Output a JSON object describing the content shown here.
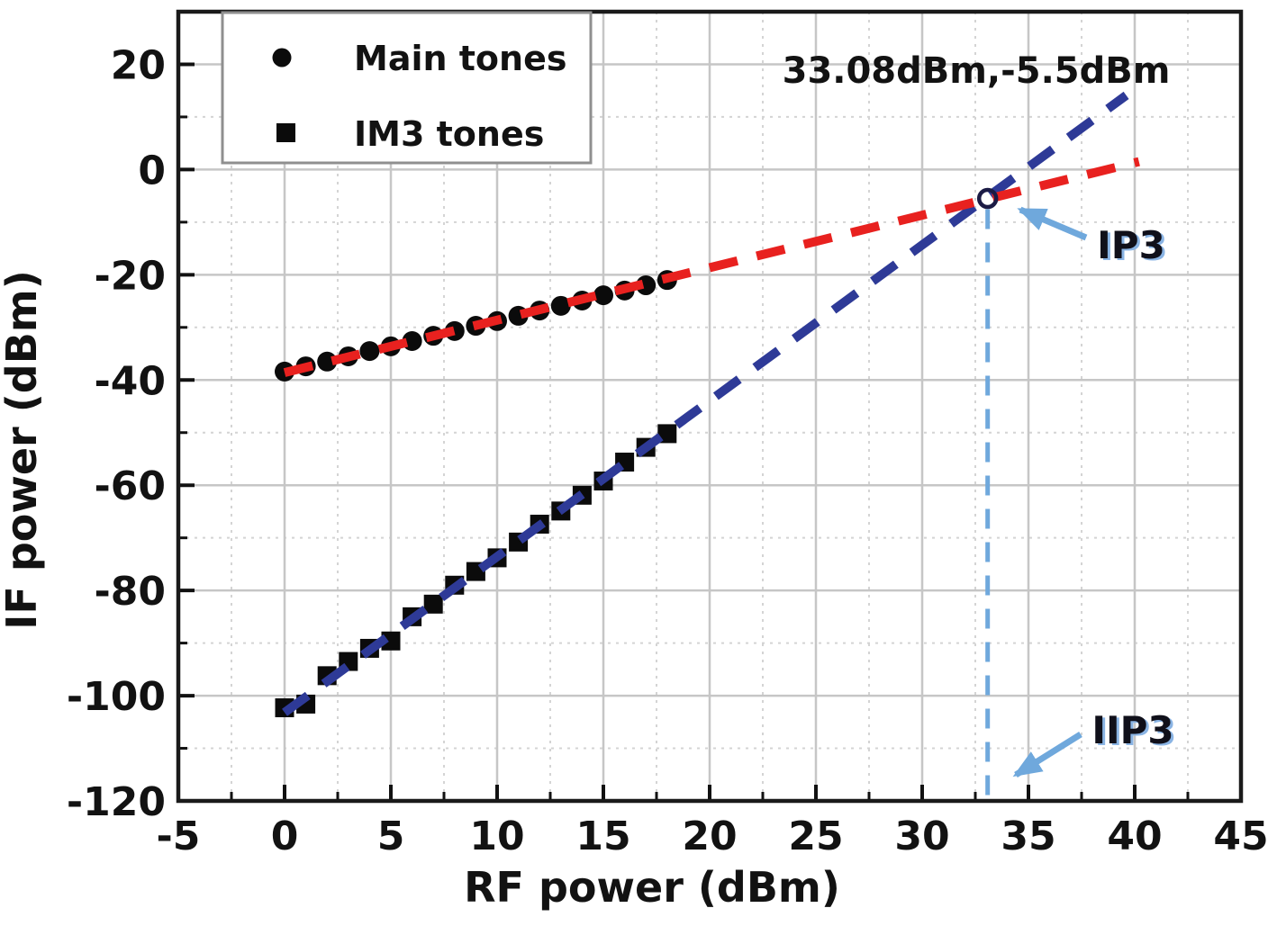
{
  "chart_data": {
    "type": "scatter",
    "xlabel": "RF power (dBm)",
    "ylabel": "IF power (dBm)",
    "xlim": [
      -5,
      45
    ],
    "ylim": [
      -120,
      30
    ],
    "grid": true,
    "legend_position": "top-left",
    "x_ticks": [
      -5,
      0,
      5,
      10,
      15,
      20,
      25,
      30,
      35,
      40,
      45
    ],
    "y_ticks": [
      20,
      0,
      -20,
      -40,
      -60,
      -80,
      -100,
      -120
    ],
    "x_major_gridlines": [
      0,
      5,
      10,
      15,
      20,
      25,
      30,
      35,
      40
    ],
    "y_major_gridlines": [
      20,
      0,
      -20,
      -40,
      -60,
      -80,
      -100
    ],
    "x_minor_ticks": [
      -2.5,
      2.5,
      7.5,
      12.5,
      17.5,
      22.5,
      27.5,
      32.5,
      37.5,
      42.5
    ],
    "y_minor_ticks": [
      10,
      -10,
      -30,
      -50,
      -70,
      -90,
      -110
    ],
    "series": [
      {
        "name": "Main tones",
        "marker": "circle",
        "x": [
          0,
          1,
          2,
          3,
          4,
          5,
          6,
          7,
          8,
          9,
          10,
          11,
          12,
          13,
          14,
          15,
          16,
          17,
          18
        ],
        "y": [
          -38.4,
          -37.4,
          -36.5,
          -35.5,
          -34.5,
          -33.6,
          -32.6,
          -31.6,
          -30.7,
          -29.7,
          -28.8,
          -27.8,
          -26.8,
          -25.9,
          -24.9,
          -23.9,
          -23.0,
          -22.0,
          -21.0
        ]
      },
      {
        "name": "IM3 tones",
        "marker": "square",
        "x": [
          0,
          1,
          2,
          3,
          4,
          5,
          6,
          7,
          8,
          9,
          10,
          11,
          12,
          13,
          14,
          15,
          16,
          17,
          18
        ],
        "y": [
          -102.3,
          -101.6,
          -96.2,
          -93.5,
          -91.0,
          -89.6,
          -85.0,
          -82.6,
          -79.0,
          -76.4,
          -73.8,
          -70.8,
          -67.4,
          -64.9,
          -61.9,
          -59.2,
          -55.6,
          -52.8,
          -50.2
        ]
      }
    ],
    "fit_lines": [
      {
        "name": "im3-tones-fit",
        "slope_order": 3,
        "x1": 0,
        "y1": -103.2,
        "x2": 39.6,
        "y2": 14.1
      },
      {
        "name": "main-tones-fit",
        "slope_order": 1,
        "x1": 0,
        "y1": -38.6,
        "x2": 40.2,
        "y2": 1.5
      }
    ],
    "ip3_point": {
      "x": 33.08,
      "y": -5.5,
      "label": "33.08dBm,-5.5dBm"
    },
    "annotations": {
      "ip3": "IP3",
      "iip3": "IIP3"
    },
    "colors": {
      "main_fit": "#e8211f",
      "im3_fit": "#2e3a97",
      "guide": "#6fa8dc",
      "marker": "#0b0b0b",
      "grid_major": "#c6c6c6",
      "grid_minor": "#d4d4d4",
      "frame": "#1a1a1a",
      "legend_border": "#8f8f8f",
      "intersection_ring": "#1b1b45"
    }
  }
}
